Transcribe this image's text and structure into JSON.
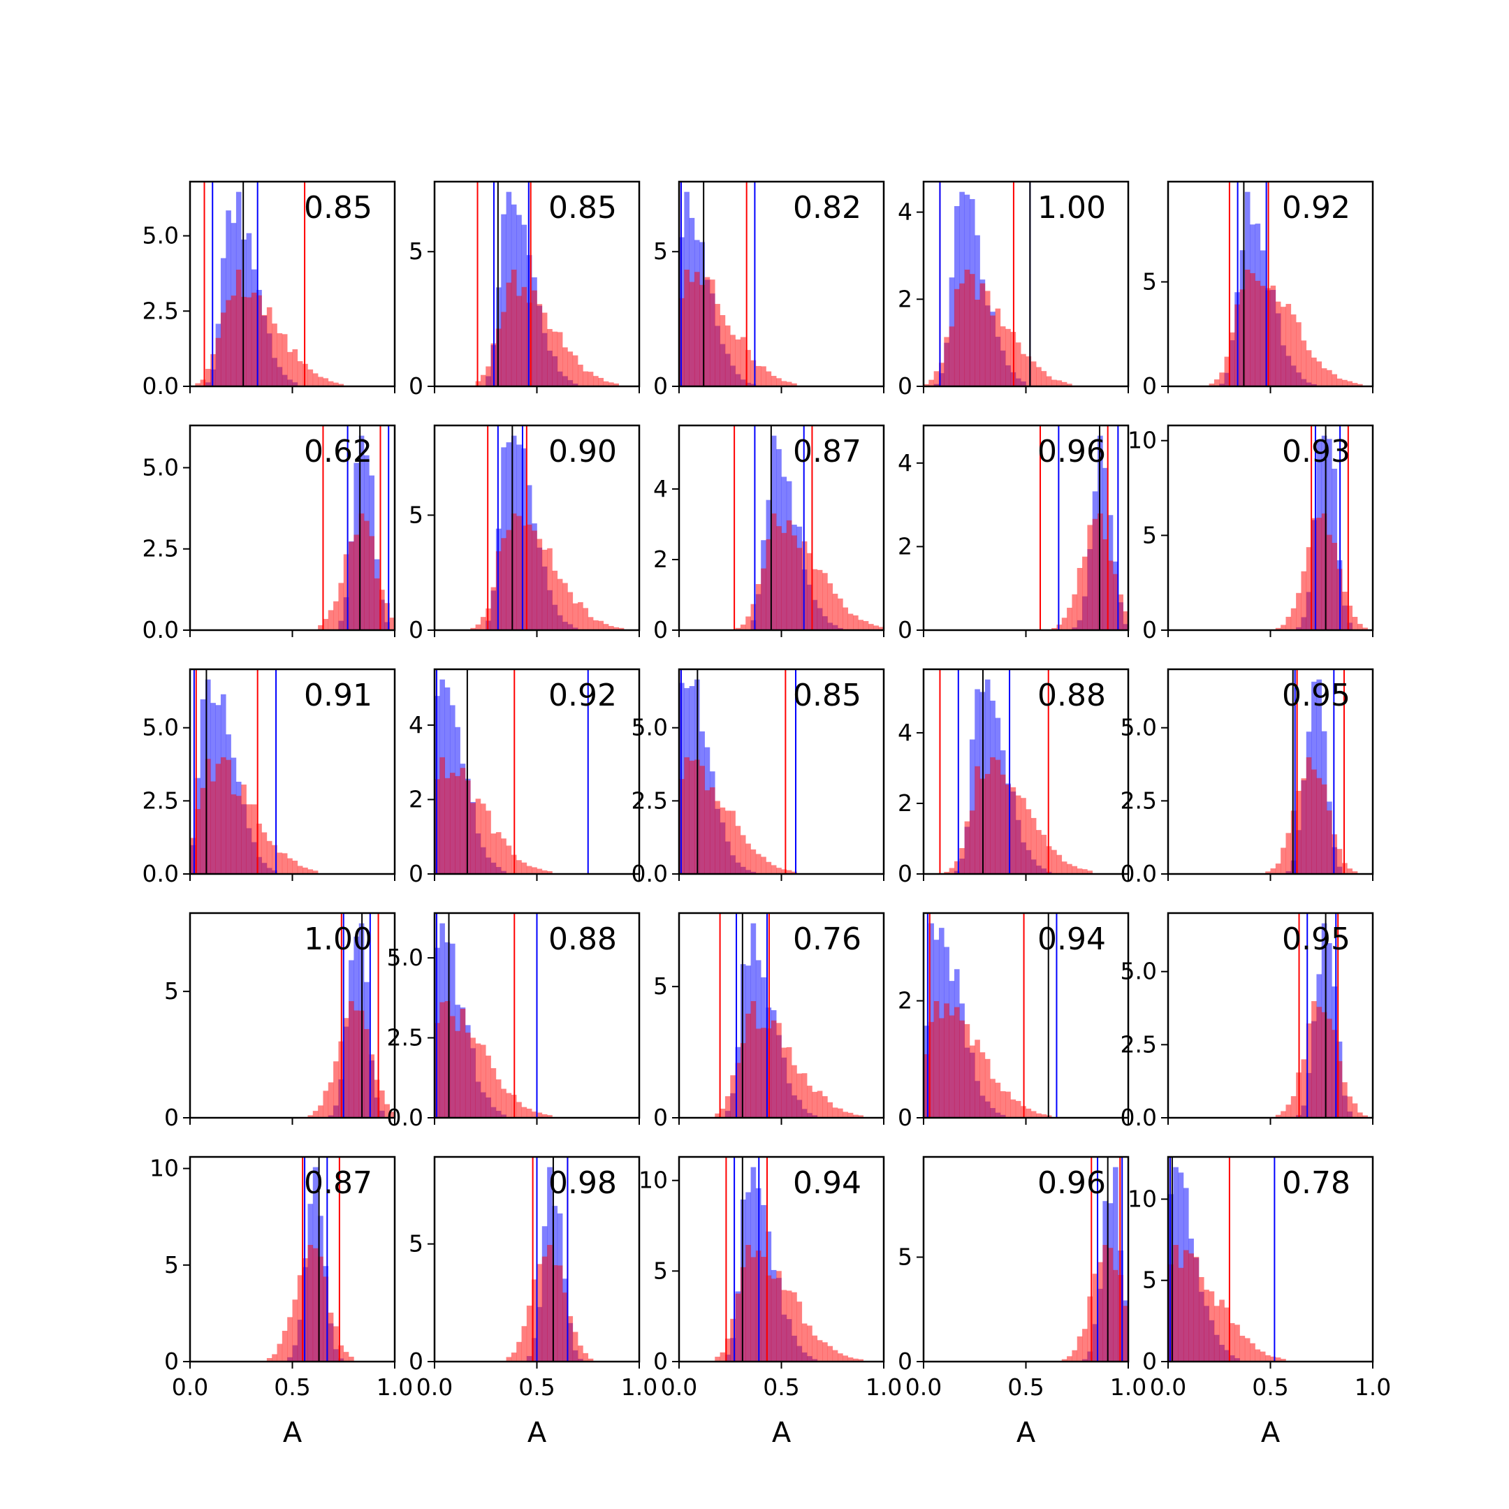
{
  "colors": {
    "blue": "#0000ff",
    "red": "#ff0000",
    "black": "#000000",
    "blue_fill": "#6f6fff",
    "red_fill": "#ff6a6a"
  },
  "chart_data": {
    "type": "bar",
    "layout": "5x5 grid of overlaid histograms",
    "xlabel": "A",
    "xlim": [
      0,
      1
    ],
    "xticks": [
      "0.0",
      "0.5",
      "1.0"
    ],
    "panels": [
      {
        "value_label": "0.85",
        "ylim": [
          0,
          6.8
        ],
        "yticks": [
          0,
          2.5,
          5
        ],
        "ytick_labels": [
          "0.0",
          "2.5",
          "5.0"
        ],
        "blue_centers": [
          0.2,
          0.22,
          0.24
        ],
        "blue_lines": [
          0.11,
          0.33
        ],
        "red_lines": [
          0.07,
          0.56
        ],
        "black_line": 0.26
      },
      {
        "value_label": "0.85",
        "ylim": [
          0,
          7.6
        ],
        "yticks": [
          0,
          5
        ],
        "ytick_labels": [
          "0",
          "5"
        ],
        "blue_centers": [
          0.36
        ],
        "blue_lines": [
          0.29,
          0.46
        ],
        "red_lines": [
          0.21,
          0.47
        ],
        "black_line": 0.31
      },
      {
        "value_label": "0.82",
        "ylim": [
          0,
          7.6
        ],
        "yticks": [
          0,
          5
        ],
        "ytick_labels": [
          "0",
          "5"
        ],
        "blue_centers": [
          0.03
        ],
        "blue_lines": [
          0.01,
          0.37
        ],
        "red_lines": [
          0.01,
          0.33
        ],
        "black_line": 0.12
      },
      {
        "value_label": "1.00",
        "ylim": [
          0,
          4.7
        ],
        "yticks": [
          0,
          2,
          4
        ],
        "ytick_labels": [
          "0",
          "2",
          "4"
        ],
        "blue_centers": [
          0.18
        ],
        "blue_lines": [
          0.08,
          0.52
        ],
        "red_lines": [
          0.08,
          0.44
        ],
        "black_line": 0.52
      },
      {
        "value_label": "0.92",
        "ylim": [
          0,
          9.8
        ],
        "yticks": [
          0,
          5
        ],
        "ytick_labels": [
          "0",
          "5"
        ],
        "blue_centers": [
          0.38
        ],
        "blue_lines": [
          0.34,
          0.48
        ],
        "red_lines": [
          0.3,
          0.49
        ],
        "black_line": 0.37
      },
      {
        "value_label": "0.62",
        "ylim": [
          0,
          6.3
        ],
        "yticks": [
          0,
          2.5,
          5
        ],
        "ytick_labels": [
          "0.0",
          "2.5",
          "5.0"
        ],
        "blue_centers": [
          0.85
        ],
        "blue_lines": [
          0.77,
          0.97
        ],
        "red_lines": [
          0.65,
          0.93
        ],
        "black_line": 0.83
      },
      {
        "value_label": "0.90",
        "ylim": [
          0,
          8.9
        ],
        "yticks": [
          0,
          5
        ],
        "ytick_labels": [
          "0",
          "5"
        ],
        "blue_centers": [
          0.36
        ],
        "blue_lines": [
          0.31,
          0.43
        ],
        "red_lines": [
          0.26,
          0.45
        ],
        "black_line": 0.38
      },
      {
        "value_label": "0.87",
        "ylim": [
          0,
          5.8
        ],
        "yticks": [
          0,
          2,
          4
        ],
        "ytick_labels": [
          "0",
          "2",
          "4"
        ],
        "blue_centers": [
          0.46
        ],
        "blue_lines": [
          0.37,
          0.61
        ],
        "red_lines": [
          0.27,
          0.65
        ],
        "black_line": 0.45
      },
      {
        "value_label": "0.96",
        "ylim": [
          0,
          4.9
        ],
        "yticks": [
          0,
          2,
          4
        ],
        "ytick_labels": [
          "0",
          "2",
          "4"
        ],
        "blue_centers": [
          0.87
        ],
        "blue_lines": [
          0.66,
          0.95
        ],
        "red_lines": [
          0.57,
          0.9
        ],
        "black_line": 0.86
      },
      {
        "value_label": "0.93",
        "ylim": [
          0,
          10.8
        ],
        "yticks": [
          0,
          5,
          10
        ],
        "ytick_labels": [
          "0",
          "5",
          "10"
        ],
        "blue_centers": [
          0.77
        ],
        "blue_lines": [
          0.72,
          0.84
        ],
        "red_lines": [
          0.7,
          0.88
        ],
        "black_line": 0.77
      },
      {
        "value_label": "0.91",
        "ylim": [
          0,
          7.0
        ],
        "yticks": [
          0,
          2.5,
          5
        ],
        "ytick_labels": [
          "0.0",
          "2.5",
          "5.0"
        ],
        "blue_centers": [
          0.09
        ],
        "blue_lines": [
          0.02,
          0.42
        ],
        "red_lines": [
          0.03,
          0.33
        ],
        "black_line": 0.08
      },
      {
        "value_label": "0.92",
        "ylim": [
          0,
          5.5
        ],
        "yticks": [
          0,
          2,
          4
        ],
        "ytick_labels": [
          "0",
          "2",
          "4"
        ],
        "blue_centers": [
          0.02
        ],
        "blue_lines": [
          0.01,
          0.75
        ],
        "red_lines": [
          0.01,
          0.39
        ],
        "black_line": 0.16
      },
      {
        "value_label": "0.85",
        "ylim": [
          0,
          7.0
        ],
        "yticks": [
          0,
          2.5,
          5
        ],
        "ytick_labels": [
          "0.0",
          "2.5",
          "5.0"
        ],
        "blue_centers": [
          0.02
        ],
        "blue_lines": [
          0.01,
          0.57
        ],
        "red_lines": [
          0.01,
          0.52
        ],
        "black_line": 0.09
      },
      {
        "value_label": "0.88",
        "ylim": [
          0,
          5.8
        ],
        "yticks": [
          0,
          2,
          4
        ],
        "ytick_labels": [
          "0",
          "2",
          "4"
        ],
        "blue_centers": [
          0.28
        ],
        "blue_lines": [
          0.17,
          0.42
        ],
        "red_lines": [
          0.08,
          0.61
        ],
        "black_line": 0.29
      },
      {
        "value_label": "0.95",
        "ylim": [
          0,
          7.0
        ],
        "yticks": [
          0,
          2.5,
          5
        ],
        "ytick_labels": [
          "0.0",
          "2.5",
          "5.0"
        ],
        "blue_centers": [
          0.72
        ],
        "blue_lines": [
          0.62,
          0.81
        ],
        "red_lines": [
          0.63,
          0.86
        ],
        "black_line": 0.61
      },
      {
        "value_label": "1.00",
        "ylim": [
          0,
          8.1
        ],
        "yticks": [
          0,
          5
        ],
        "ytick_labels": [
          "0",
          "5"
        ],
        "blue_centers": [
          0.82
        ],
        "blue_lines": [
          0.75,
          0.88
        ],
        "red_lines": [
          0.74,
          0.92
        ],
        "black_line": 0.84
      },
      {
        "value_label": "0.88",
        "ylim": [
          0,
          6.4
        ],
        "yticks": [
          0,
          2.5,
          5
        ],
        "ytick_labels": [
          "0.0",
          "2.5",
          "5.0"
        ],
        "blue_centers": [
          0.02
        ],
        "blue_lines": [
          0.01,
          0.5
        ],
        "red_lines": [
          0.01,
          0.39
        ],
        "black_line": 0.07
      },
      {
        "value_label": "0.76",
        "ylim": [
          0,
          7.8
        ],
        "yticks": [
          0,
          5
        ],
        "ytick_labels": [
          "0",
          "5"
        ],
        "blue_centers": [
          0.34
        ],
        "blue_lines": [
          0.28,
          0.43
        ],
        "red_lines": [
          0.2,
          0.44
        ],
        "black_line": 0.31
      },
      {
        "value_label": "0.94",
        "ylim": [
          0,
          3.5
        ],
        "yticks": [
          0,
          2
        ],
        "ytick_labels": [
          "0",
          "2"
        ],
        "blue_centers": [
          0.06
        ],
        "blue_lines": [
          0.02,
          0.65
        ],
        "red_lines": [
          0.03,
          0.49
        ],
        "black_line": 0.61
      },
      {
        "value_label": "0.95",
        "ylim": [
          0,
          7.0
        ],
        "yticks": [
          0,
          2.5,
          5
        ],
        "ytick_labels": [
          "0.0",
          "2.5",
          "5.0"
        ],
        "blue_centers": [
          0.77
        ],
        "blue_lines": [
          0.68,
          0.82
        ],
        "red_lines": [
          0.64,
          0.83
        ],
        "black_line": 0.77
      },
      {
        "value_label": "0.87",
        "ylim": [
          0,
          10.6
        ],
        "yticks": [
          0,
          5,
          10
        ],
        "ytick_labels": [
          "0",
          "5",
          "10"
        ],
        "blue_centers": [
          0.61
        ],
        "blue_lines": [
          0.56,
          0.67
        ],
        "red_lines": [
          0.55,
          0.73
        ],
        "black_line": 0.63
      },
      {
        "value_label": "0.98",
        "ylim": [
          0,
          8.7
        ],
        "yticks": [
          0,
          5
        ],
        "ytick_labels": [
          "0",
          "5"
        ],
        "blue_centers": [
          0.58
        ],
        "blue_lines": [
          0.5,
          0.65
        ],
        "red_lines": [
          0.48,
          0.65
        ],
        "black_line": 0.58
      },
      {
        "value_label": "0.94",
        "ylim": [
          0,
          11.3
        ],
        "yticks": [
          0,
          5,
          10
        ],
        "ytick_labels": [
          "0",
          "5",
          "10"
        ],
        "blue_centers": [
          0.34
        ],
        "blue_lines": [
          0.27,
          0.39
        ],
        "red_lines": [
          0.23,
          0.43
        ],
        "black_line": 0.31
      },
      {
        "value_label": "0.96",
        "ylim": [
          0,
          9.8
        ],
        "yticks": [
          0,
          5
        ],
        "ytick_labels": [
          "0",
          "5"
        ],
        "blue_centers": [
          0.92
        ],
        "blue_lines": [
          0.85,
          0.97
        ],
        "red_lines": [
          0.82,
          0.96
        ],
        "black_line": 0.9
      },
      {
        "value_label": "0.78",
        "ylim": [
          0,
          12.6
        ],
        "yticks": [
          0,
          5,
          10
        ],
        "ytick_labels": [
          "0",
          "5",
          "10"
        ],
        "blue_centers": [
          0.02
        ],
        "blue_lines": [
          0.01,
          0.52
        ],
        "red_lines": [
          0.01,
          0.3
        ],
        "black_line": 0.02
      }
    ]
  }
}
